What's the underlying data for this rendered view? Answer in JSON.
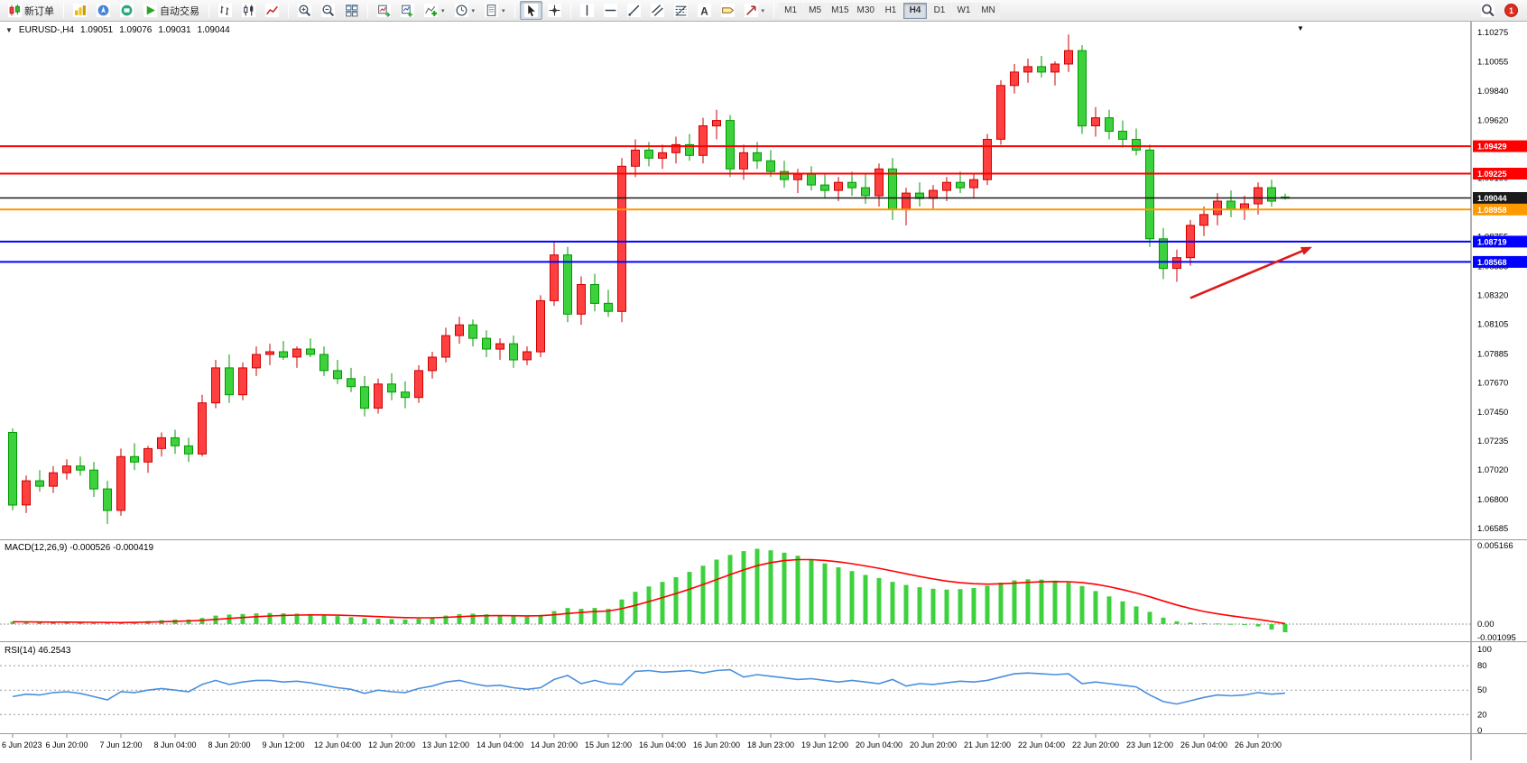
{
  "toolbar": {
    "new_order": "新订单",
    "auto_trading": "自动交易",
    "timeframes": [
      {
        "label": "M1",
        "active": false
      },
      {
        "label": "M5",
        "active": false
      },
      {
        "label": "M15",
        "active": false
      },
      {
        "label": "M30",
        "active": false
      },
      {
        "label": "H1",
        "active": false
      },
      {
        "label": "H4",
        "active": true
      },
      {
        "label": "D1",
        "active": false
      },
      {
        "label": "W1",
        "active": false
      },
      {
        "label": "MN",
        "active": false
      }
    ],
    "notification_count": "1",
    "icons": [
      "new-order-icon",
      "market-watch-icon",
      "navigator-icon",
      "data-window-icon",
      "auto-trading-play-icon",
      "bar-chart-icon",
      "candlestick-chart-icon",
      "line-chart-icon",
      "zoom-in-icon",
      "zoom-out-icon",
      "tile-windows-icon",
      "chart-forward-icon",
      "chart-shift-icon",
      "add-indicator-icon",
      "periods-clock-icon",
      "templates-icon",
      "cursor-icon",
      "crosshair-icon",
      "vertical-line-icon",
      "horizontal-line-icon",
      "trendline-icon",
      "channel-icon",
      "fibonacci-icon",
      "text-icon",
      "label-icon",
      "arrows-icon",
      "search-icon",
      "notification-badge"
    ]
  },
  "chart_header": {
    "symbol": "EURUSD-,H4",
    "open": "1.09051",
    "high": "1.09076",
    "low": "1.09031",
    "close": "1.09044"
  },
  "indicators": {
    "macd_label": "MACD(12,26,9) -0.000526 -0.000419",
    "rsi_label": "RSI(14) 46.2543"
  },
  "chart_data": {
    "type": "candlestick",
    "symbol": "EURUSD",
    "timeframe": "H4",
    "up_color": "#ff4040",
    "up_stroke": "#cc0000",
    "down_color": "#3dd13d",
    "down_stroke": "#009900",
    "price_axis": {
      "min": 1.06505,
      "max": 1.10355,
      "ticks": [
        "1.10275",
        "1.10055",
        "1.09840",
        "1.09620",
        "1.09405",
        "1.09190",
        "1.08970",
        "1.08755",
        "1.08535",
        "1.08320",
        "1.08105",
        "1.07885",
        "1.07670",
        "1.07450",
        "1.07235",
        "1.07020",
        "1.06800",
        "1.06585"
      ]
    },
    "time_labels": [
      "6 Jun 2023",
      "6 Jun 20:00",
      "7 Jun 12:00",
      "8 Jun 04:00",
      "8 Jun 20:00",
      "9 Jun 12:00",
      "12 Jun 04:00",
      "12 Jun 20:00",
      "13 Jun 12:00",
      "14 Jun 04:00",
      "14 Jun 20:00",
      "15 Jun 12:00",
      "16 Jun 04:00",
      "16 Jun 20:00",
      "18 Jun 23:00",
      "19 Jun 12:00",
      "20 Jun 04:00",
      "20 Jun 20:00",
      "21 Jun 12:00",
      "22 Jun 04:00",
      "22 Jun 20:00",
      "23 Jun 12:00",
      "26 Jun 04:00",
      "26 Jun 20:00"
    ],
    "candles": [
      [
        1.073,
        1.0733,
        1.0672,
        1.0676
      ],
      [
        1.0676,
        1.0698,
        1.067,
        1.0694
      ],
      [
        1.0694,
        1.0702,
        1.0686,
        1.069
      ],
      [
        1.069,
        1.0705,
        1.0685,
        1.07
      ],
      [
        1.07,
        1.071,
        1.0695,
        1.0705
      ],
      [
        1.0705,
        1.0712,
        1.0698,
        1.0702
      ],
      [
        1.0702,
        1.0708,
        1.0682,
        1.0688
      ],
      [
        1.0688,
        1.0694,
        1.0662,
        1.0672
      ],
      [
        1.0672,
        1.0718,
        1.0668,
        1.0712
      ],
      [
        1.0712,
        1.0722,
        1.0702,
        1.0708
      ],
      [
        1.0708,
        1.072,
        1.07,
        1.0718
      ],
      [
        1.0718,
        1.073,
        1.0712,
        1.0726
      ],
      [
        1.0726,
        1.0732,
        1.0714,
        1.072
      ],
      [
        1.072,
        1.0726,
        1.0708,
        1.0714
      ],
      [
        1.0714,
        1.0758,
        1.0712,
        1.0752
      ],
      [
        1.0752,
        1.0784,
        1.0748,
        1.0778
      ],
      [
        1.0778,
        1.0788,
        1.0752,
        1.0758
      ],
      [
        1.0758,
        1.0782,
        1.0754,
        1.0778
      ],
      [
        1.0778,
        1.0794,
        1.0772,
        1.0788
      ],
      [
        1.0788,
        1.0796,
        1.078,
        1.079
      ],
      [
        1.079,
        1.0798,
        1.0784,
        1.0786
      ],
      [
        1.0786,
        1.0794,
        1.0778,
        1.0792
      ],
      [
        1.0792,
        1.08,
        1.0786,
        1.0788
      ],
      [
        1.0788,
        1.0794,
        1.0772,
        1.0776
      ],
      [
        1.0776,
        1.0784,
        1.0766,
        1.077
      ],
      [
        1.077,
        1.0778,
        1.076,
        1.0764
      ],
      [
        1.0764,
        1.0772,
        1.0742,
        1.0748
      ],
      [
        1.0748,
        1.077,
        1.0744,
        1.0766
      ],
      [
        1.0766,
        1.0774,
        1.0754,
        1.076
      ],
      [
        1.076,
        1.0768,
        1.0748,
        1.0756
      ],
      [
        1.0756,
        1.078,
        1.0752,
        1.0776
      ],
      [
        1.0776,
        1.079,
        1.077,
        1.0786
      ],
      [
        1.0786,
        1.0808,
        1.0782,
        1.0802
      ],
      [
        1.0802,
        1.0816,
        1.0796,
        1.081
      ],
      [
        1.081,
        1.0814,
        1.0794,
        1.08
      ],
      [
        1.08,
        1.0806,
        1.0786,
        1.0792
      ],
      [
        1.0792,
        1.08,
        1.0784,
        1.0796
      ],
      [
        1.0796,
        1.0802,
        1.0778,
        1.0784
      ],
      [
        1.0784,
        1.0794,
        1.078,
        1.079
      ],
      [
        1.079,
        1.0832,
        1.0786,
        1.0828
      ],
      [
        1.0828,
        1.0872,
        1.0824,
        1.0862
      ],
      [
        1.0862,
        1.0868,
        1.0812,
        1.0818
      ],
      [
        1.0818,
        1.0846,
        1.081,
        1.084
      ],
      [
        1.084,
        1.0848,
        1.082,
        1.0826
      ],
      [
        1.0826,
        1.0836,
        1.0816,
        1.082
      ],
      [
        1.082,
        1.0934,
        1.0812,
        1.0928
      ],
      [
        1.0928,
        1.0948,
        1.092,
        1.094
      ],
      [
        1.094,
        1.0946,
        1.0928,
        1.0934
      ],
      [
        1.0934,
        1.0944,
        1.0926,
        1.0938
      ],
      [
        1.0938,
        1.095,
        1.093,
        1.0944
      ],
      [
        1.0944,
        1.0952,
        1.0932,
        1.0936
      ],
      [
        1.0936,
        1.0964,
        1.093,
        1.0958
      ],
      [
        1.0958,
        1.097,
        1.0948,
        1.0962
      ],
      [
        1.0962,
        1.0966,
        1.092,
        1.0926
      ],
      [
        1.0926,
        1.0944,
        1.0918,
        1.0938
      ],
      [
        1.0938,
        1.0946,
        1.0926,
        1.0932
      ],
      [
        1.0932,
        1.094,
        1.092,
        1.0924
      ],
      [
        1.0924,
        1.0932,
        1.0912,
        1.0918
      ],
      [
        1.0918,
        1.0926,
        1.0908,
        1.0922
      ],
      [
        1.0922,
        1.0928,
        1.091,
        1.0914
      ],
      [
        1.0914,
        1.0922,
        1.0904,
        1.091
      ],
      [
        1.091,
        1.092,
        1.0902,
        1.0916
      ],
      [
        1.0916,
        1.0924,
        1.0906,
        1.0912
      ],
      [
        1.0912,
        1.0922,
        1.09,
        1.0906
      ],
      [
        1.0906,
        1.093,
        1.0898,
        1.0926
      ],
      [
        1.0926,
        1.0934,
        1.0888,
        1.0896
      ],
      [
        1.0896,
        1.0912,
        1.0884,
        1.0908
      ],
      [
        1.0908,
        1.0916,
        1.0898,
        1.0904
      ],
      [
        1.0904,
        1.0914,
        1.0896,
        1.091
      ],
      [
        1.091,
        1.092,
        1.0902,
        1.0916
      ],
      [
        1.0916,
        1.0924,
        1.0908,
        1.0912
      ],
      [
        1.0912,
        1.0922,
        1.0904,
        1.0918
      ],
      [
        1.0918,
        1.0952,
        1.0914,
        1.0948
      ],
      [
        1.0948,
        1.0992,
        1.0944,
        1.0988
      ],
      [
        1.0988,
        1.1004,
        1.0982,
        1.0998
      ],
      [
        1.0998,
        1.1008,
        1.099,
        1.1002
      ],
      [
        1.1002,
        1.101,
        1.0994,
        1.0998
      ],
      [
        1.0998,
        1.1006,
        1.0988,
        1.1004
      ],
      [
        1.1004,
        1.1026,
        1.0998,
        1.1014
      ],
      [
        1.1014,
        1.1018,
        1.0952,
        1.0958
      ],
      [
        1.0958,
        1.0972,
        1.095,
        1.0964
      ],
      [
        1.0964,
        1.097,
        1.0948,
        1.0954
      ],
      [
        1.0954,
        1.0962,
        1.0942,
        1.0948
      ],
      [
        1.0948,
        1.0956,
        1.0936,
        1.094
      ],
      [
        1.094,
        1.0944,
        1.0868,
        1.0874
      ],
      [
        1.0874,
        1.0882,
        1.0844,
        1.0852
      ],
      [
        1.0852,
        1.0866,
        1.0842,
        1.086
      ],
      [
        1.086,
        1.0888,
        1.0854,
        1.0884
      ],
      [
        1.0884,
        1.0898,
        1.0876,
        1.0892
      ],
      [
        1.0892,
        1.0908,
        1.0884,
        1.0902
      ],
      [
        1.0902,
        1.091,
        1.089,
        1.0896
      ],
      [
        1.0896,
        1.0906,
        1.0888,
        1.09
      ],
      [
        1.09,
        1.0916,
        1.0892,
        1.0912
      ],
      [
        1.0912,
        1.0918,
        1.0898,
        1.0902
      ],
      [
        1.09051,
        1.09076,
        1.09031,
        1.09044
      ]
    ],
    "hlines": [
      {
        "price": 1.09429,
        "color": "#ff0000",
        "label": "1.09429",
        "width": 2
      },
      {
        "price": 1.09225,
        "color": "#ff0000",
        "label": "1.09225",
        "width": 2
      },
      {
        "price": 1.09044,
        "color": "#1a1a1a",
        "label": "1.09044",
        "width": 1.5
      },
      {
        "price": 1.08958,
        "color": "#ff9900",
        "label": "1.08958",
        "width": 2
      },
      {
        "price": 1.08719,
        "color": "#0000ff",
        "label": "1.08719",
        "width": 2
      },
      {
        "price": 1.08568,
        "color": "#0000ff",
        "label": "1.08568",
        "width": 2
      }
    ],
    "arrow": {
      "from_index": 87,
      "from_price": 1.083,
      "to_index": 96,
      "to_price": 1.0868,
      "color": "#dd1a1a"
    },
    "macd": {
      "title": "MACD(12,26,9)",
      "current_macd": -0.000526,
      "current_signal": -0.000419,
      "scale": 1e-05,
      "max": 0.005166,
      "min": -0.001095,
      "axis": [
        "0.005166",
        "0.00",
        "-0.001095"
      ],
      "hist_color": "#3dd13d",
      "signal_color": "#ff0000",
      "values": [
        15,
        12,
        10,
        10,
        12,
        12,
        8,
        5,
        10,
        14,
        20,
        26,
        30,
        30,
        40,
        55,
        62,
        66,
        70,
        72,
        70,
        68,
        65,
        60,
        52,
        45,
        38,
        35,
        32,
        30,
        35,
        42,
        55,
        65,
        68,
        64,
        58,
        52,
        48,
        60,
        85,
        105,
        100,
        105,
        100,
        160,
        210,
        245,
        275,
        305,
        340,
        380,
        420,
        450,
        475,
        490,
        480,
        465,
        445,
        420,
        395,
        370,
        345,
        320,
        300,
        275,
        255,
        240,
        230,
        225,
        228,
        235,
        250,
        270,
        285,
        292,
        290,
        283,
        272,
        248,
        215,
        180,
        148,
        115,
        80,
        42,
        18,
        10,
        6,
        4,
        2,
        -4,
        -15,
        -35,
        -52.6
      ]
    },
    "rsi": {
      "title": "RSI(14)",
      "current": 46.2543,
      "levels": [
        80,
        50,
        20
      ],
      "axis": [
        "100",
        "80",
        "50",
        "20",
        "0"
      ],
      "color": "#4a8fdd",
      "values": [
        42,
        45,
        44,
        47,
        48,
        46,
        42,
        38,
        48,
        47,
        50,
        52,
        50,
        48,
        57,
        62,
        57,
        60,
        62,
        62,
        60,
        61,
        59,
        56,
        53,
        51,
        46,
        50,
        48,
        47,
        52,
        55,
        60,
        62,
        58,
        55,
        56,
        53,
        51,
        53,
        63,
        68,
        58,
        62,
        58,
        57,
        73,
        74,
        72,
        73,
        74,
        71,
        74,
        75,
        66,
        69,
        67,
        65,
        63,
        64,
        62,
        60,
        62,
        60,
        58,
        63,
        55,
        58,
        57,
        59,
        61,
        60,
        62,
        66,
        70,
        71,
        70,
        69,
        70,
        58,
        60,
        58,
        56,
        54,
        44,
        36,
        33,
        37,
        41,
        44,
        43,
        44,
        47,
        45,
        46.25
      ]
    }
  }
}
